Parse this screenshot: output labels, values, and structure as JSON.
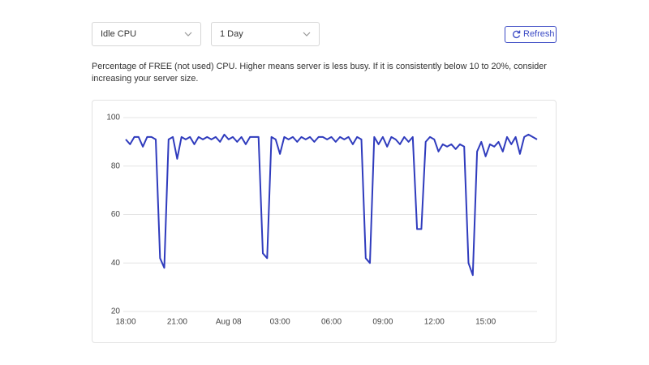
{
  "controls": {
    "metric_select": "Idle CPU",
    "range_select": "1 Day",
    "refresh_button": "Refresh"
  },
  "description": "Percentage of FREE (not used) CPU. Higher means server is less busy. If it is consistently below 10 to 20%, consider increasing your server size.",
  "chart_data": {
    "type": "line",
    "color": "#2f3bbd",
    "grid": true,
    "xlim": [
      0,
      24
    ],
    "ylim": [
      20,
      100
    ],
    "yticks": [
      20,
      40,
      60,
      80,
      100
    ],
    "xticks": [
      {
        "value": 0,
        "label": "18:00"
      },
      {
        "value": 3,
        "label": "21:00"
      },
      {
        "value": 6,
        "label": "Aug 08"
      },
      {
        "value": 9,
        "label": "03:00"
      },
      {
        "value": 12,
        "label": "06:00"
      },
      {
        "value": 15,
        "label": "09:00"
      },
      {
        "value": 18,
        "label": "12:00"
      },
      {
        "value": 21,
        "label": "15:00"
      }
    ],
    "x": [
      0,
      0.25,
      0.5,
      0.75,
      1,
      1.25,
      1.5,
      1.75,
      2,
      2.25,
      2.5,
      2.75,
      3,
      3.25,
      3.5,
      3.75,
      4,
      4.25,
      4.5,
      4.75,
      5,
      5.25,
      5.5,
      5.75,
      6,
      6.25,
      6.5,
      6.75,
      7,
      7.25,
      7.5,
      7.75,
      8,
      8.25,
      8.5,
      8.75,
      9,
      9.25,
      9.5,
      9.75,
      10,
      10.25,
      10.5,
      10.75,
      11,
      11.25,
      11.5,
      11.75,
      12,
      12.25,
      12.5,
      12.75,
      13,
      13.25,
      13.5,
      13.75,
      14,
      14.25,
      14.5,
      14.75,
      15,
      15.25,
      15.5,
      15.75,
      16,
      16.25,
      16.5,
      16.75,
      17,
      17.25,
      17.5,
      17.75,
      18,
      18.25,
      18.5,
      18.75,
      19,
      19.25,
      19.5,
      19.75,
      20,
      20.25,
      20.5,
      20.75,
      21,
      21.25,
      21.5,
      21.75,
      22,
      22.25,
      22.5,
      22.75,
      23,
      23.25,
      23.5,
      23.75,
      24
    ],
    "values": [
      91,
      89,
      92,
      92,
      88,
      92,
      92,
      91,
      42,
      38,
      91,
      92,
      83,
      92,
      91,
      92,
      89,
      92,
      91,
      92,
      91,
      92,
      90,
      93,
      91,
      92,
      90,
      92,
      89,
      92,
      92,
      92,
      44,
      42,
      92,
      91,
      85,
      92,
      91,
      92,
      90,
      92,
      91,
      92,
      90,
      92,
      92,
      91,
      92,
      90,
      92,
      91,
      92,
      89,
      92,
      91,
      42,
      40,
      92,
      89,
      92,
      88,
      92,
      91,
      89,
      92,
      90,
      92,
      54,
      54,
      90,
      92,
      91,
      86,
      89,
      88,
      89,
      87,
      89,
      88,
      40,
      35,
      86,
      90,
      84,
      89,
      88,
      90,
      86,
      92,
      89,
      92,
      85,
      92,
      93,
      92,
      91
    ]
  }
}
